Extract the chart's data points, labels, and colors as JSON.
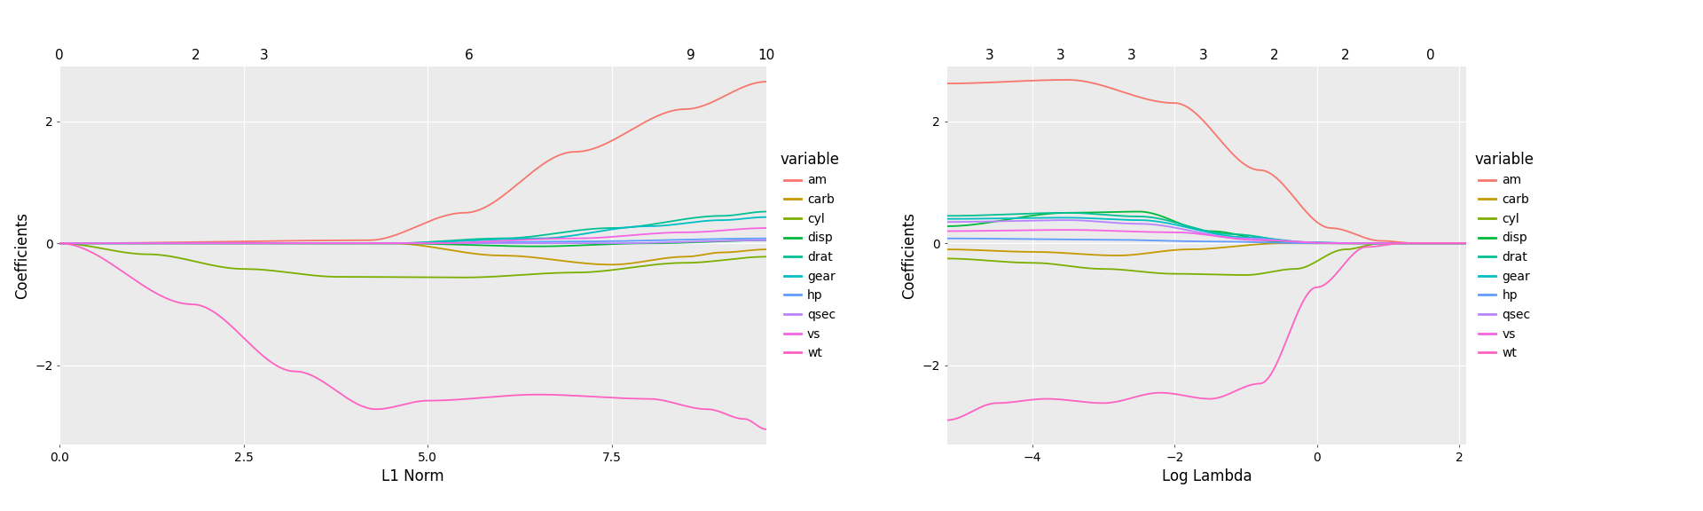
{
  "bg_color": "#EBEBEB",
  "grid_color": "#FFFFFF",
  "variables": [
    "am",
    "carb",
    "cyl",
    "disp",
    "drat",
    "gear",
    "hp",
    "qsec",
    "vs",
    "wt"
  ],
  "var_colors": {
    "am": "#F8766D",
    "carb": "#C49A00",
    "cyl": "#7CAE00",
    "disp": "#00BA38",
    "drat": "#00C094",
    "gear": "#00BFC4",
    "hp": "#619CFF",
    "qsec": "#B983FF",
    "vs": "#F564E3",
    "wt": "#FF61C3"
  },
  "plot1": {
    "xlabel": "L1 Norm",
    "ylabel": "Coefficients",
    "xlim": [
      0.0,
      9.6
    ],
    "ylim": [
      -3.3,
      2.9
    ],
    "xticks_bottom": [
      0.0,
      2.5,
      5.0,
      7.5
    ],
    "yticks": [
      -2,
      0,
      2
    ],
    "top_tick_pos": [
      0.0,
      1.85,
      2.78,
      5.56,
      8.58,
      9.6
    ],
    "top_tick_labels": [
      "0",
      "2",
      "3",
      "6",
      "9",
      "10"
    ]
  },
  "plot2": {
    "xlabel": "Log Lambda",
    "ylabel": "Coefficients",
    "xlim": [
      -5.2,
      2.1
    ],
    "ylim": [
      -3.3,
      2.9
    ],
    "xticks_bottom": [
      -4,
      -2,
      0,
      2
    ],
    "yticks": [
      -2,
      0,
      2
    ],
    "top_tick_pos": [
      -4.6,
      -3.6,
      -2.6,
      -1.6,
      -0.6,
      0.4,
      1.6
    ],
    "top_tick_labels": [
      "3",
      "3",
      "3",
      "3",
      "2",
      "2",
      "0"
    ]
  },
  "paths1": {
    "am": [
      [
        0,
        0
      ],
      [
        4.2,
        0.05
      ],
      [
        5.5,
        0.5
      ],
      [
        7.0,
        1.5
      ],
      [
        8.5,
        2.2
      ],
      [
        9.6,
        2.65
      ]
    ],
    "carb": [
      [
        0,
        0
      ],
      [
        4.5,
        0.0
      ],
      [
        6.0,
        -0.2
      ],
      [
        7.5,
        -0.35
      ],
      [
        8.5,
        -0.22
      ],
      [
        9.0,
        -0.15
      ],
      [
        9.6,
        -0.1
      ]
    ],
    "cyl": [
      [
        0,
        0
      ],
      [
        1.2,
        -0.18
      ],
      [
        2.5,
        -0.42
      ],
      [
        3.8,
        -0.55
      ],
      [
        5.5,
        -0.56
      ],
      [
        7.0,
        -0.48
      ],
      [
        8.5,
        -0.32
      ],
      [
        9.6,
        -0.22
      ]
    ],
    "disp": [
      [
        0,
        0
      ],
      [
        4.5,
        0.0
      ],
      [
        6.5,
        -0.05
      ],
      [
        8.0,
        0.0
      ],
      [
        9.6,
        0.05
      ]
    ],
    "drat": [
      [
        0,
        0
      ],
      [
        4.5,
        0.0
      ],
      [
        6.0,
        0.08
      ],
      [
        7.5,
        0.25
      ],
      [
        9.0,
        0.45
      ],
      [
        9.6,
        0.52
      ]
    ],
    "gear": [
      [
        0,
        0
      ],
      [
        4.5,
        0.0
      ],
      [
        6.5,
        0.08
      ],
      [
        8.0,
        0.28
      ],
      [
        9.0,
        0.38
      ],
      [
        9.6,
        0.43
      ]
    ],
    "hp": [
      [
        0,
        0
      ],
      [
        5.0,
        0.0
      ],
      [
        7.0,
        0.03
      ],
      [
        9.6,
        0.08
      ]
    ],
    "qsec": [
      [
        0,
        0
      ],
      [
        5.0,
        0.0
      ],
      [
        7.5,
        0.0
      ],
      [
        9.6,
        0.05
      ]
    ],
    "vs": [
      [
        0,
        0
      ],
      [
        5.0,
        0.0
      ],
      [
        7.0,
        0.08
      ],
      [
        8.5,
        0.18
      ],
      [
        9.6,
        0.25
      ]
    ],
    "wt": [
      [
        0,
        0
      ],
      [
        1.8,
        -1.0
      ],
      [
        3.2,
        -2.1
      ],
      [
        4.3,
        -2.72
      ],
      [
        5.0,
        -2.58
      ],
      [
        6.5,
        -2.48
      ],
      [
        8.0,
        -2.55
      ],
      [
        8.8,
        -2.72
      ],
      [
        9.3,
        -2.88
      ],
      [
        9.6,
        -3.05
      ]
    ]
  },
  "paths2": {
    "am": [
      [
        -5.2,
        2.62
      ],
      [
        -3.5,
        2.68
      ],
      [
        -2.0,
        2.3
      ],
      [
        -0.8,
        1.2
      ],
      [
        0.2,
        0.25
      ],
      [
        0.9,
        0.04
      ],
      [
        1.4,
        0.0
      ],
      [
        2.1,
        0.0
      ]
    ],
    "carb": [
      [
        -5.2,
        -0.1
      ],
      [
        -4.0,
        -0.14
      ],
      [
        -2.8,
        -0.2
      ],
      [
        -1.8,
        -0.1
      ],
      [
        -0.5,
        0.0
      ],
      [
        0.5,
        0.0
      ],
      [
        2.1,
        0.0
      ]
    ],
    "cyl": [
      [
        -5.2,
        -0.25
      ],
      [
        -4.0,
        -0.32
      ],
      [
        -3.0,
        -0.42
      ],
      [
        -2.0,
        -0.5
      ],
      [
        -1.0,
        -0.52
      ],
      [
        -0.3,
        -0.42
      ],
      [
        0.4,
        -0.1
      ],
      [
        0.9,
        0.0
      ],
      [
        2.1,
        0.0
      ]
    ],
    "disp": [
      [
        -5.2,
        0.28
      ],
      [
        -3.5,
        0.5
      ],
      [
        -2.5,
        0.52
      ],
      [
        -1.5,
        0.2
      ],
      [
        -0.5,
        0.02
      ],
      [
        0.3,
        0.0
      ],
      [
        2.1,
        0.0
      ]
    ],
    "drat": [
      [
        -5.2,
        0.45
      ],
      [
        -3.5,
        0.5
      ],
      [
        -2.5,
        0.44
      ],
      [
        -1.2,
        0.15
      ],
      [
        -0.2,
        0.02
      ],
      [
        0.5,
        0.0
      ],
      [
        2.1,
        0.0
      ]
    ],
    "gear": [
      [
        -5.2,
        0.4
      ],
      [
        -3.5,
        0.42
      ],
      [
        -2.5,
        0.38
      ],
      [
        -1.0,
        0.1
      ],
      [
        0.0,
        0.01
      ],
      [
        0.6,
        0.0
      ],
      [
        2.1,
        0.0
      ]
    ],
    "hp": [
      [
        -5.2,
        0.08
      ],
      [
        -3.0,
        0.06
      ],
      [
        -1.5,
        0.03
      ],
      [
        0.0,
        0.0
      ],
      [
        2.1,
        0.0
      ]
    ],
    "qsec": [
      [
        -5.2,
        0.35
      ],
      [
        -3.5,
        0.38
      ],
      [
        -2.5,
        0.32
      ],
      [
        -1.0,
        0.08
      ],
      [
        0.0,
        0.01
      ],
      [
        0.6,
        0.0
      ],
      [
        2.1,
        0.0
      ]
    ],
    "vs": [
      [
        -5.2,
        0.2
      ],
      [
        -3.5,
        0.22
      ],
      [
        -2.0,
        0.18
      ],
      [
        -0.8,
        0.05
      ],
      [
        0.3,
        0.0
      ],
      [
        2.1,
        0.0
      ]
    ],
    "wt": [
      [
        -5.2,
        -2.9
      ],
      [
        -4.5,
        -2.62
      ],
      [
        -3.8,
        -2.55
      ],
      [
        -3.0,
        -2.62
      ],
      [
        -2.2,
        -2.45
      ],
      [
        -1.5,
        -2.55
      ],
      [
        -0.8,
        -2.3
      ],
      [
        0.0,
        -0.72
      ],
      [
        0.7,
        -0.06
      ],
      [
        1.2,
        0.0
      ],
      [
        2.1,
        0.0
      ]
    ]
  }
}
